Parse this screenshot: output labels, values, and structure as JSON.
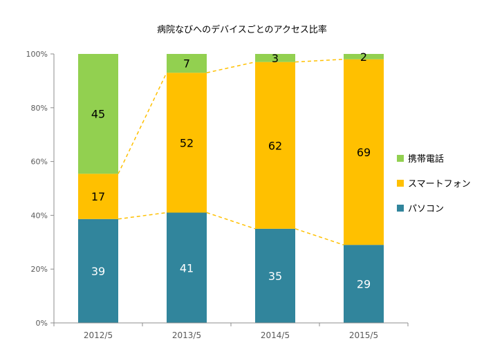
{
  "chart_data": {
    "type": "bar",
    "stacked": true,
    "percent": true,
    "title": "病院なびへのデバイスごとのアクセス比率",
    "xlabel": "",
    "ylabel": "",
    "categories": [
      "2012/5",
      "2013/5",
      "2014/5",
      "2015/5"
    ],
    "series": [
      {
        "name": "パソコン",
        "values": [
          39,
          41,
          35,
          29
        ],
        "color": "#31859C"
      },
      {
        "name": "スマートフォン",
        "values": [
          17,
          52,
          62,
          69
        ],
        "color": "#FFC000"
      },
      {
        "name": "携帯電話",
        "values": [
          45,
          7,
          3,
          2
        ],
        "color": "#92D050"
      }
    ],
    "ylim": [
      0,
      100
    ],
    "yticks": [
      "0%",
      "20%",
      "40%",
      "60%",
      "80%",
      "100%"
    ],
    "grid": false,
    "legend_position": "right",
    "series_lines": {
      "style": "dashed",
      "color": "#FFC000"
    }
  }
}
